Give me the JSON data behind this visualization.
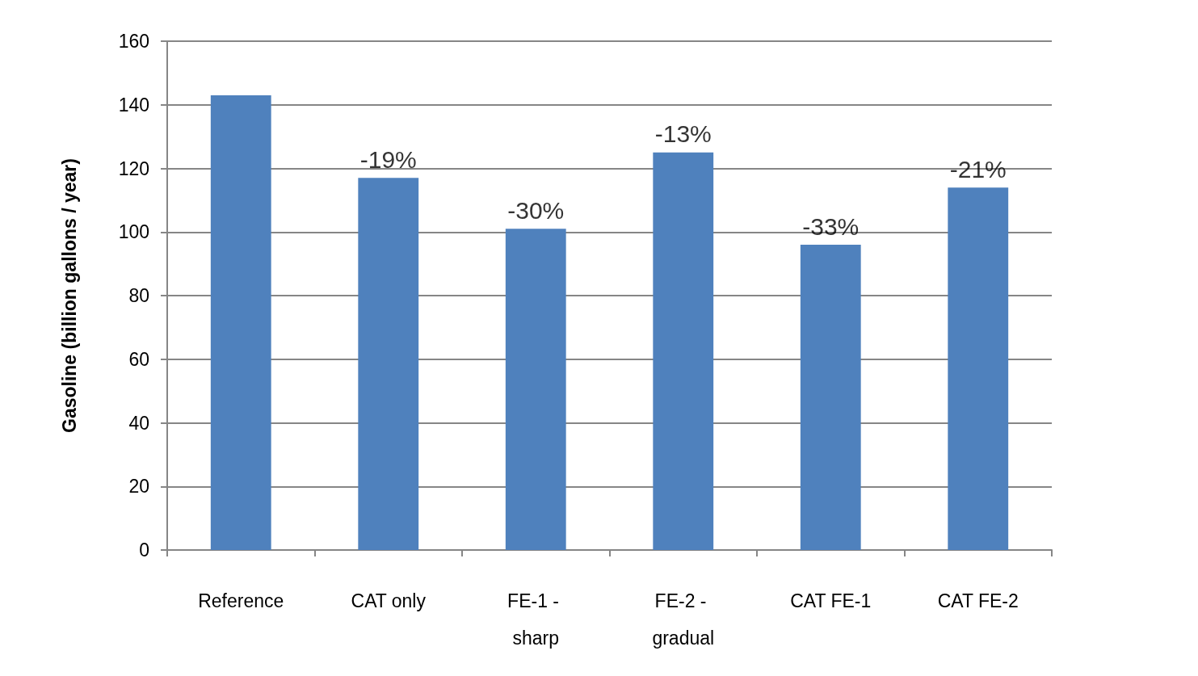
{
  "chart_data": {
    "type": "bar",
    "ylabel": "Gasoline (billion gallons / year)",
    "categories": [
      "Reference",
      "CAT only",
      "FE-1 - sharp",
      "FE-2 - gradual",
      "CAT FE-1",
      "CAT FE-2"
    ],
    "values": [
      143,
      117,
      101,
      125,
      96,
      114
    ],
    "annotations": [
      {
        "text": "-19%",
        "x": "CAT only",
        "y": 117
      },
      {
        "text": "-30%",
        "x": "FE-1 - sharp",
        "y": 101
      },
      {
        "text": "-13%",
        "x": "FE-2 - gradual",
        "y": 125
      },
      {
        "text": "-33%",
        "x": "CAT FE-1",
        "y": 96
      },
      {
        "text": "-21%",
        "x": "CAT FE-2",
        "y": 114
      }
    ],
    "color": "#4f81bd",
    "ylim": [
      0,
      160
    ],
    "yticks": [
      0,
      20,
      40,
      60,
      80,
      100,
      120,
      140,
      160
    ],
    "grid": "y"
  }
}
